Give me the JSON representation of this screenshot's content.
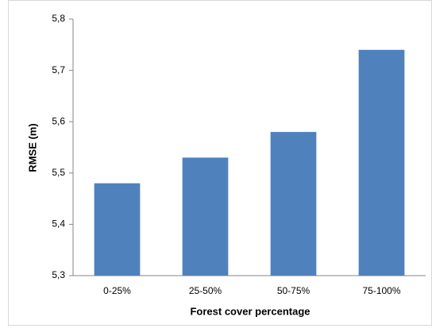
{
  "chart_data": {
    "type": "bar",
    "categories": [
      "0-25%",
      "25-50%",
      "50-75%",
      "75-100%"
    ],
    "values": [
      5.48,
      5.53,
      5.58,
      5.74
    ],
    "color": "#4f81bd",
    "x_label": "Forest cover percentage",
    "y_label": "RMSE (m)",
    "ylim": [
      5.3,
      5.8
    ],
    "yticks": [
      {
        "value": 5.3,
        "label": "5,3"
      },
      {
        "value": 5.4,
        "label": "5,4"
      },
      {
        "value": 5.5,
        "label": "5,5"
      },
      {
        "value": 5.6,
        "label": "5,6"
      },
      {
        "value": 5.7,
        "label": "5,7"
      },
      {
        "value": 5.8,
        "label": "5,8"
      }
    ],
    "grid": false
  }
}
